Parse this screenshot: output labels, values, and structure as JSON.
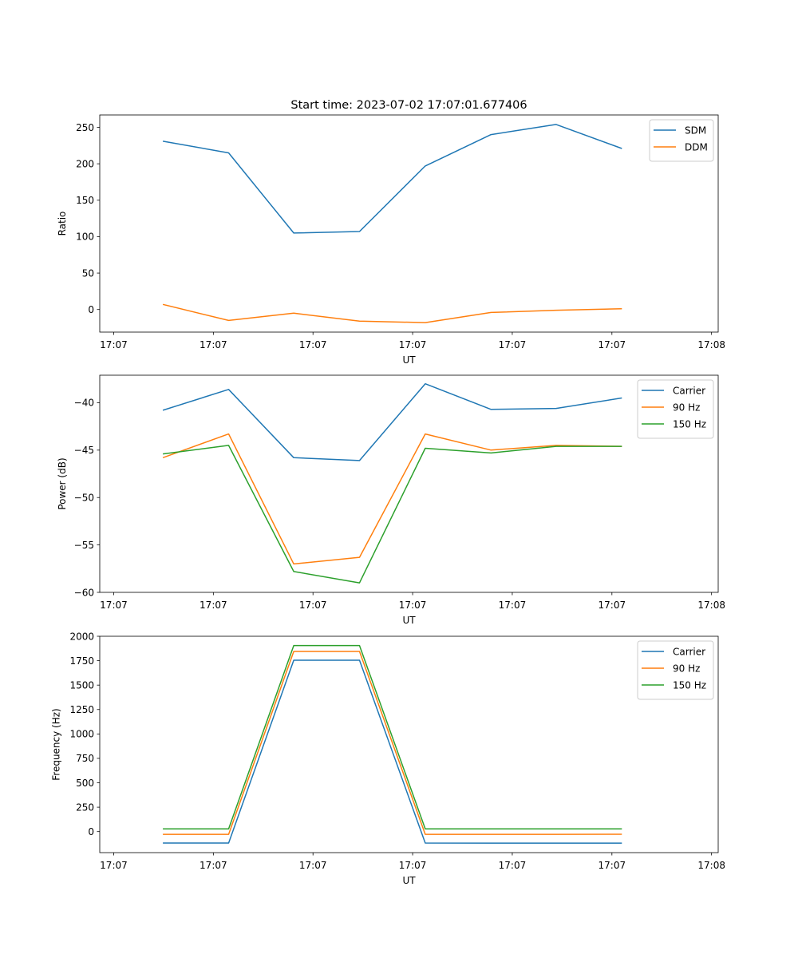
{
  "figure_title": "Start time: 2023-07-02 17:07:01.677406",
  "colors": {
    "blue": "#1f77b4",
    "orange": "#ff7f0e",
    "green": "#2ca02c"
  },
  "chart_data": [
    {
      "type": "line",
      "title": "Start time: 2023-07-02 17:07:01.677406",
      "xlabel": "UT",
      "ylabel": "Ratio",
      "x_index_range": [
        -0.21,
        9.1
      ],
      "x_ticks": [
        0,
        1.5,
        3,
        4.5,
        6,
        7.5,
        9
      ],
      "x_tick_labels": [
        "17:07",
        "17:07",
        "17:07",
        "17:07",
        "17:07",
        "17:07",
        "17:08"
      ],
      "ylim": [
        -31,
        267
      ],
      "y_ticks": [
        0,
        50,
        100,
        150,
        200,
        250
      ],
      "y_tick_labels": [
        "0",
        "50",
        "100",
        "150",
        "200",
        "250"
      ],
      "x": [
        0.74,
        1.73,
        2.71,
        3.7,
        4.69,
        5.68,
        6.66,
        7.65
      ],
      "series": [
        {
          "name": "SDM",
          "color": "#1f77b4",
          "values": [
            231,
            215,
            105,
            107,
            197,
            240,
            254,
            221
          ]
        },
        {
          "name": "DDM",
          "color": "#ff7f0e",
          "values": [
            7,
            -15,
            -5,
            -16,
            -18,
            -4,
            -1,
            1
          ]
        }
      ],
      "legend": "top-right"
    },
    {
      "type": "line",
      "xlabel": "UT",
      "ylabel": "Power (dB)",
      "x_index_range": [
        -0.21,
        9.1
      ],
      "x_ticks": [
        0,
        1.5,
        3,
        4.5,
        6,
        7.5,
        9
      ],
      "x_tick_labels": [
        "17:07",
        "17:07",
        "17:07",
        "17:07",
        "17:07",
        "17:07",
        "17:08"
      ],
      "ylim": [
        -60.0,
        -37.1
      ],
      "y_ticks": [
        -60,
        -55,
        -50,
        -45,
        -40
      ],
      "y_tick_labels": [
        "−60",
        "−55",
        "−50",
        "−45",
        "−40"
      ],
      "x": [
        0.74,
        1.73,
        2.71,
        3.7,
        4.69,
        5.68,
        6.66,
        7.65
      ],
      "series": [
        {
          "name": "Carrier",
          "color": "#1f77b4",
          "values": [
            -40.8,
            -38.6,
            -45.8,
            -46.1,
            -38.0,
            -40.7,
            -40.6,
            -39.5
          ]
        },
        {
          "name": "90 Hz",
          "color": "#ff7f0e",
          "values": [
            -45.8,
            -43.3,
            -57.0,
            -56.3,
            -43.3,
            -45.0,
            -44.5,
            -44.6
          ]
        },
        {
          "name": "150 Hz",
          "color": "#2ca02c",
          "values": [
            -45.4,
            -44.5,
            -57.8,
            -59.0,
            -44.8,
            -45.3,
            -44.6,
            -44.6
          ]
        }
      ],
      "legend": "top-right"
    },
    {
      "type": "line",
      "xlabel": "UT",
      "ylabel": "Frequency (Hz)",
      "x_index_range": [
        -0.21,
        9.1
      ],
      "x_ticks": [
        0,
        1.5,
        3,
        4.5,
        6,
        7.5,
        9
      ],
      "x_tick_labels": [
        "17:07",
        "17:07",
        "17:07",
        "17:07",
        "17:07",
        "17:07",
        "17:08"
      ],
      "ylim": [
        -215,
        2000
      ],
      "y_ticks": [
        0,
        250,
        500,
        750,
        1000,
        1250,
        1500,
        1750,
        2000
      ],
      "y_tick_labels": [
        "0",
        "250",
        "500",
        "750",
        "1000",
        "1250",
        "1500",
        "1750",
        "2000"
      ],
      "x": [
        0.74,
        1.73,
        2.71,
        3.7,
        4.69,
        5.68,
        6.66,
        7.65
      ],
      "series": [
        {
          "name": "Carrier",
          "color": "#1f77b4",
          "values": [
            -117,
            -117,
            1755,
            1755,
            -117,
            -118,
            -118,
            -118
          ]
        },
        {
          "name": "90 Hz",
          "color": "#ff7f0e",
          "values": [
            -28,
            -28,
            1845,
            1845,
            -28,
            -28,
            -28,
            -27
          ]
        },
        {
          "name": "150 Hz",
          "color": "#2ca02c",
          "values": [
            28,
            28,
            1905,
            1905,
            28,
            28,
            28,
            28
          ]
        }
      ],
      "legend": "top-right"
    }
  ]
}
